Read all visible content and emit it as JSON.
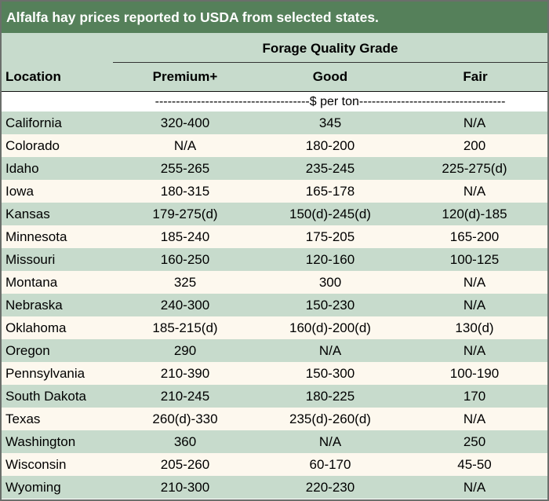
{
  "title": "Alfalfa hay prices reported to USDA from selected states.",
  "header": {
    "group_label": "Forage Quality Grade",
    "location_label": "Location",
    "columns": [
      "Premium+",
      "Good",
      "Fair"
    ]
  },
  "unit_label": "-------------------------------------$ per ton-----------------------------------",
  "colors": {
    "title_bar": "#55805a",
    "header_band": "#c7dbcc",
    "row_shade": "#c7dbcc",
    "row_plain": "#fdf8ee"
  },
  "rows": [
    {
      "location": "California",
      "premium": "320-400",
      "good": "345",
      "fair": "N/A"
    },
    {
      "location": "Colorado",
      "premium": "N/A",
      "good": "180-200",
      "fair": "200"
    },
    {
      "location": "Idaho",
      "premium": "255-265",
      "good": "235-245",
      "fair": "225-275(d)"
    },
    {
      "location": "Iowa",
      "premium": "180-315",
      "good": "165-178",
      "fair": "N/A"
    },
    {
      "location": "Kansas",
      "premium": "179-275(d)",
      "good": "150(d)-245(d)",
      "fair": "120(d)-185"
    },
    {
      "location": "Minnesota",
      "premium": "185-240",
      "good": "175-205",
      "fair": "165-200"
    },
    {
      "location": "Missouri",
      "premium": "160-250",
      "good": "120-160",
      "fair": "100-125"
    },
    {
      "location": "Montana",
      "premium": "325",
      "good": "300",
      "fair": "N/A"
    },
    {
      "location": "Nebraska",
      "premium": "240-300",
      "good": "150-230",
      "fair": "N/A"
    },
    {
      "location": "Oklahoma",
      "premium": "185-215(d)",
      "good": "160(d)-200(d)",
      "fair": "130(d)"
    },
    {
      "location": "Oregon",
      "premium": "290",
      "good": "N/A",
      "fair": "N/A"
    },
    {
      "location": "Pennsylvania",
      "premium": "210-390",
      "good": "150-300",
      "fair": "100-190"
    },
    {
      "location": "South Dakota",
      "premium": "210-245",
      "good": "180-225",
      "fair": "170"
    },
    {
      "location": "Texas",
      "premium": "260(d)-330",
      "good": "235(d)-260(d)",
      "fair": "N/A"
    },
    {
      "location": "Washington",
      "premium": "360",
      "good": "N/A",
      "fair": "250"
    },
    {
      "location": "Wisconsin",
      "premium": "205-260",
      "good": "60-170",
      "fair": "45-50"
    },
    {
      "location": "Wyoming",
      "premium": "210-300",
      "good": "220-230",
      "fair": "N/A"
    }
  ]
}
